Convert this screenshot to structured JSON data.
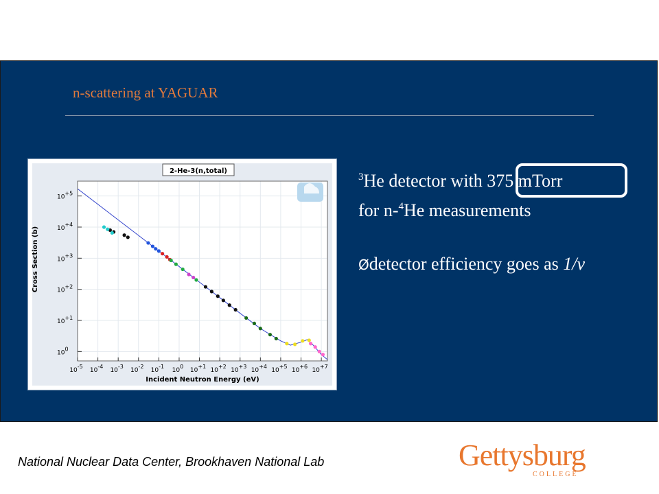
{
  "slide": {
    "title": "n-scattering at YAGUAR",
    "line1": {
      "sup": "3",
      "text": "He detector with ",
      "highlight": "375 mTorr"
    },
    "line2": {
      "pre": "for n-",
      "sup": "4",
      "text": "He measurements"
    },
    "bullet": {
      "marker": "Ø",
      "text": "detector efficiency goes as ",
      "italic": "1/v"
    }
  },
  "footer": {
    "credit": "National Nuclear Data Center, Brookhaven National Lab"
  },
  "logo": {
    "main": "Gettysburg",
    "sub": "COLLEGE"
  },
  "colors": {
    "panel": "#003366",
    "accent": "#e07a3c",
    "logo": "#e8772e"
  },
  "chart_data": {
    "type": "scatter",
    "title": "2-He-3(n,total)",
    "xlabel": "Incident Neutron Energy (eV)",
    "ylabel": "Cross Section (b)",
    "x_scale": "log",
    "y_scale": "log",
    "x_ticks": [
      {
        "exp": "-5",
        "value": 1e-05
      },
      {
        "exp": "-4",
        "value": 0.0001
      },
      {
        "exp": "-3",
        "value": 0.001
      },
      {
        "exp": "-2",
        "value": 0.01
      },
      {
        "exp": "-1",
        "value": 0.1
      },
      {
        "exp": "0",
        "value": 1
      },
      {
        "exp": "+1",
        "value": 10
      },
      {
        "exp": "+2",
        "value": 100
      },
      {
        "exp": "+3",
        "value": 1000
      },
      {
        "exp": "+4",
        "value": 10000
      },
      {
        "exp": "+5",
        "value": 100000
      },
      {
        "exp": "+6",
        "value": 1000000
      },
      {
        "exp": "+7",
        "value": 10000000
      }
    ],
    "y_ticks": [
      {
        "exp": "0",
        "value": 1
      },
      {
        "exp": "+1",
        "value": 10
      },
      {
        "exp": "+2",
        "value": 100
      },
      {
        "exp": "+3",
        "value": 1000
      },
      {
        "exp": "+4",
        "value": 10000
      },
      {
        "exp": "+5",
        "value": 100000
      }
    ],
    "xlim": [
      1e-05,
      20000000
    ],
    "ylim": [
      0.5,
      300000
    ],
    "evaluated_curve": [
      [
        5e-06,
        280000
      ],
      [
        1e-05,
        170000
      ],
      [
        0.0001,
        54000
      ],
      [
        0.001,
        17000
      ],
      [
        0.01,
        5400
      ],
      [
        0.1,
        1700
      ],
      [
        1,
        540
      ],
      [
        10,
        170
      ],
      [
        100,
        54
      ],
      [
        1000,
        17
      ],
      [
        10000,
        5.5
      ],
      [
        100000,
        2.2
      ],
      [
        300000,
        1.6
      ],
      [
        1000000,
        2.0
      ],
      [
        2000000,
        2.4
      ],
      [
        4000000,
        1.6
      ],
      [
        10000000,
        0.8
      ],
      [
        20000000,
        0.55
      ]
    ],
    "series": [
      {
        "name": "",
        "color": "#111111",
        "points": [
          [
            0.0004,
            8000
          ],
          [
            0.0006,
            7000
          ],
          [
            0.002,
            5500
          ],
          [
            0.003,
            4700
          ]
        ]
      },
      {
        "name": "",
        "color": "#22cccc",
        "points": [
          [
            0.0002,
            10000
          ],
          [
            0.0003,
            8500
          ],
          [
            0.0005,
            6500
          ]
        ]
      },
      {
        "name": "",
        "color": "#2255dd",
        "points": [
          [
            0.03,
            3100
          ],
          [
            0.05,
            2400
          ],
          [
            0.07,
            2000
          ],
          [
            0.1,
            1700
          ]
        ]
      },
      {
        "name": "",
        "color": "#dd2222",
        "points": [
          [
            0.15,
            1400
          ],
          [
            0.25,
            1100
          ],
          [
            0.35,
            900
          ]
        ]
      },
      {
        "name": "",
        "color": "#22aa44",
        "points": [
          [
            0.4,
            850
          ],
          [
            0.7,
            640
          ],
          [
            1.5,
            440
          ],
          [
            7,
            200
          ]
        ]
      },
      {
        "name": "",
        "color": "#cc44cc",
        "points": [
          [
            3,
            300
          ],
          [
            5,
            240
          ]
        ]
      },
      {
        "name": "",
        "color": "#111111",
        "points": [
          [
            20,
            120
          ],
          [
            40,
            85
          ],
          [
            80,
            60
          ],
          [
            150,
            44
          ],
          [
            300,
            31
          ],
          [
            600,
            22
          ]
        ]
      },
      {
        "name": "",
        "color": "#1a6b1a",
        "points": [
          [
            2000,
            12
          ],
          [
            5000,
            8
          ],
          [
            10000,
            5.5
          ],
          [
            30000,
            3.5
          ],
          [
            60000,
            2.6
          ]
        ]
      },
      {
        "name": "",
        "color": "#eedd22",
        "points": [
          [
            200000,
            1.8
          ],
          [
            500000,
            1.7
          ],
          [
            1200000,
            2.2
          ],
          [
            2500000,
            2.3
          ]
        ]
      },
      {
        "name": "",
        "color": "#ff66cc",
        "points": [
          [
            3000000,
            1.8
          ],
          [
            5000000,
            1.4
          ],
          [
            8000000,
            1.0
          ],
          [
            12000000,
            0.8
          ]
        ]
      }
    ]
  }
}
